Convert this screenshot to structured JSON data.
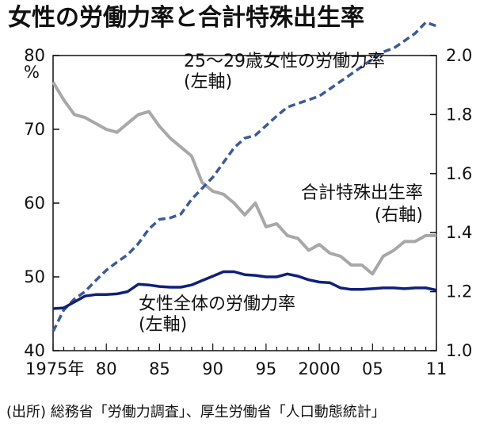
{
  "title": "女性の労働力率と合計特殊出生率",
  "source": "(出所) 総務省「労働力調査」、厚生労働省「人口動態統計」",
  "chart_data": {
    "type": "line",
    "title": "女性の労働力率と合計特殊出生率",
    "x": [
      1975,
      1976,
      1977,
      1978,
      1979,
      1980,
      1981,
      1982,
      1983,
      1984,
      1985,
      1986,
      1987,
      1988,
      1989,
      1990,
      1991,
      1992,
      1993,
      1994,
      1995,
      1996,
      1997,
      1998,
      1999,
      2000,
      2001,
      2002,
      2003,
      2004,
      2005,
      2006,
      2007,
      2008,
      2009,
      2010,
      2011
    ],
    "x_tick_labels": [
      "1975年",
      "80",
      "85",
      "90",
      "95",
      "2000",
      "05",
      "11"
    ],
    "x_tick_values": [
      1975,
      1980,
      1985,
      1990,
      1995,
      2000,
      2005,
      2011
    ],
    "y_left": {
      "unit": "%",
      "ylim": [
        40,
        80
      ],
      "ticks": [
        "40",
        "50",
        "60",
        "70",
        "80"
      ]
    },
    "y_right": {
      "ylim": [
        1.0,
        2.0
      ],
      "ticks": [
        "1.0",
        "1.2",
        "1.4",
        "1.6",
        "1.8",
        "2.0"
      ]
    },
    "series": [
      {
        "name": "25～29歳女性の労働力率",
        "axis_note": "(左軸)",
        "axis": "left",
        "style": "dashed",
        "color": "#3a5a9a",
        "values": [
          42.6,
          45.5,
          47.0,
          48.0,
          49.5,
          50.9,
          52.0,
          53.0,
          54.5,
          56.5,
          57.8,
          58.0,
          58.5,
          60.5,
          62.0,
          63.5,
          65.5,
          67.5,
          68.8,
          69.2,
          70.5,
          71.8,
          73.0,
          73.5,
          74.0,
          74.5,
          75.5,
          76.5,
          77.5,
          78.5,
          79.5,
          80.5,
          81.0,
          82.0,
          83.0,
          84.5,
          84.0
        ]
      },
      {
        "name": "合計特殊出生率",
        "axis_note": "(右軸)",
        "axis": "right",
        "style": "solid",
        "color": "#a8a8a8",
        "values": [
          1.91,
          1.85,
          1.8,
          1.79,
          1.77,
          1.75,
          1.74,
          1.77,
          1.8,
          1.81,
          1.76,
          1.72,
          1.69,
          1.66,
          1.57,
          1.54,
          1.53,
          1.5,
          1.46,
          1.5,
          1.42,
          1.43,
          1.39,
          1.38,
          1.34,
          1.36,
          1.33,
          1.32,
          1.29,
          1.29,
          1.26,
          1.32,
          1.34,
          1.37,
          1.37,
          1.39,
          1.39
        ]
      },
      {
        "name": "女性全体の労働力率",
        "axis_note": "(左軸)",
        "axis": "left",
        "style": "solid",
        "color": "#10207a",
        "values": [
          45.7,
          45.8,
          46.6,
          47.4,
          47.6,
          47.6,
          47.7,
          48.0,
          49.0,
          48.9,
          48.7,
          48.6,
          48.6,
          48.9,
          49.5,
          50.1,
          50.7,
          50.7,
          50.3,
          50.2,
          50.0,
          50.0,
          50.4,
          50.1,
          49.6,
          49.3,
          49.2,
          48.5,
          48.3,
          48.3,
          48.4,
          48.5,
          48.5,
          48.4,
          48.5,
          48.5,
          48.2
        ]
      }
    ]
  }
}
